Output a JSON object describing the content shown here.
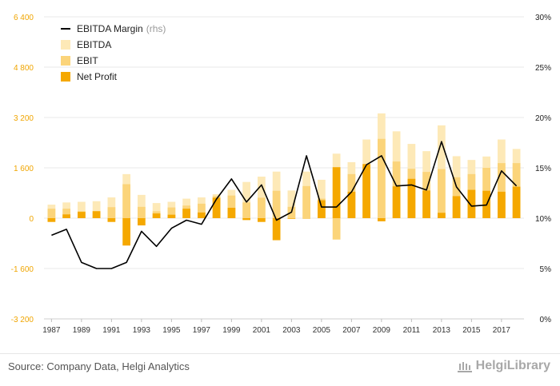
{
  "colors": {
    "ebitda": "#fde9b7",
    "ebit": "#fbd47a",
    "net_profit": "#f5a800",
    "margin_line": "#000000",
    "left_axis_text": "#f0a500",
    "right_axis_text": "#222222",
    "grid": "#e9e9e9"
  },
  "legend": {
    "margin_label": "EBITDA Margin",
    "margin_note": "(rhs)",
    "ebitda_label": "EBITDA",
    "ebit_label": "EBIT",
    "net_profit_label": "Net Profit"
  },
  "footer": {
    "source": "Source: Company Data, Helgi Analytics",
    "brand": "HelgiLibrary"
  },
  "chart_data": {
    "type": "bar+line",
    "x": [
      1987,
      1988,
      1989,
      1990,
      1991,
      1992,
      1993,
      1994,
      1995,
      1996,
      1997,
      1998,
      1999,
      2000,
      2001,
      2002,
      2003,
      2004,
      2005,
      2006,
      2007,
      2008,
      2009,
      2010,
      2011,
      2012,
      2013,
      2014,
      2015,
      2016,
      2017,
      2018
    ],
    "x_tick_labels": [
      "1987",
      "1989",
      "1991",
      "1993",
      "1995",
      "1997",
      "1999",
      "2001",
      "2003",
      "2005",
      "2007",
      "2009",
      "2011",
      "2013",
      "2015",
      "2017"
    ],
    "y_left": {
      "ticks": [
        -3200,
        -1600,
        0,
        1600,
        3200,
        4800,
        6400
      ],
      "tick_labels": [
        "-3 200",
        "-1 600",
        "0",
        "1 600",
        "3 200",
        "4 800",
        "6 400"
      ],
      "range": [
        -3200,
        6400
      ]
    },
    "y_right": {
      "ticks": [
        0,
        5,
        10,
        15,
        20,
        25,
        30
      ],
      "tick_labels": [
        "0%",
        "5%",
        "10%",
        "15%",
        "20%",
        "25%",
        "30%"
      ],
      "range": [
        0,
        30
      ]
    },
    "grid": true,
    "legend_position": "top-left",
    "series": [
      {
        "name": "EBITDA",
        "kind": "bar",
        "values": [
          430,
          500,
          520,
          540,
          660,
          1400,
          740,
          480,
          520,
          620,
          660,
          760,
          900,
          1150,
          1320,
          1480,
          880,
          1480,
          1220,
          2050,
          1780,
          2500,
          3330,
          2760,
          2360,
          2130,
          2950,
          1970,
          1850,
          1960,
          2500,
          2200
        ]
      },
      {
        "name": "EBIT",
        "kind": "bar",
        "values": [
          300,
          300,
          220,
          230,
          350,
          1080,
          360,
          220,
          340,
          400,
          460,
          700,
          720,
          500,
          650,
          870,
          360,
          1020,
          620,
          -680,
          1400,
          1620,
          2520,
          1800,
          1570,
          1470,
          1560,
          1300,
          1400,
          1600,
          1750,
          1750
        ]
      },
      {
        "name": "Net Profit",
        "kind": "bar",
        "values": [
          -120,
          120,
          200,
          220,
          -120,
          -870,
          -230,
          150,
          110,
          300,
          180,
          650,
          330,
          -60,
          -120,
          -700,
          -20,
          0,
          570,
          1620,
          840,
          1720,
          -100,
          1010,
          1250,
          880,
          170,
          700,
          900,
          870,
          840,
          1000
        ]
      },
      {
        "name": "EBITDA Margin",
        "kind": "line",
        "axis": "right",
        "values": [
          8.3,
          8.9,
          5.6,
          5.0,
          5.0,
          5.6,
          8.7,
          7.2,
          9.0,
          9.8,
          9.4,
          11.9,
          13.9,
          11.6,
          13.3,
          9.8,
          10.6,
          16.2,
          11.1,
          11.1,
          12.6,
          15.3,
          16.2,
          13.2,
          13.3,
          12.8,
          17.6,
          13.1,
          11.2,
          11.3,
          14.7,
          13.2
        ]
      }
    ]
  }
}
